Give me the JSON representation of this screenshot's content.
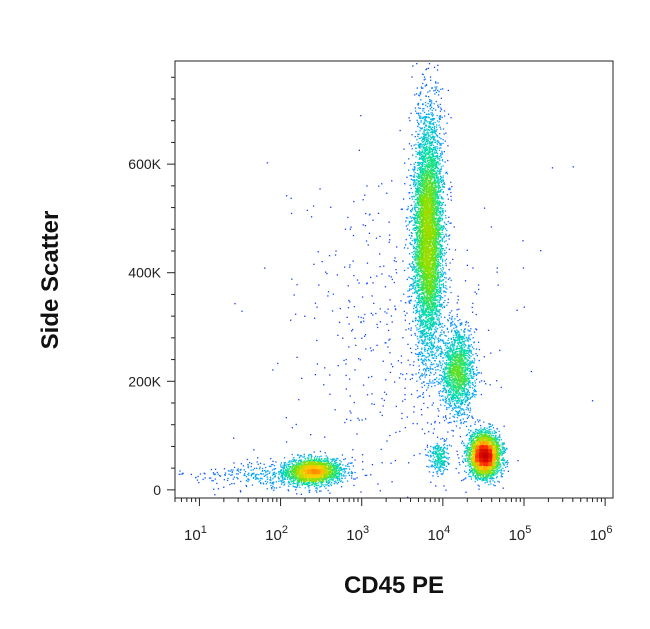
{
  "chart_data": {
    "type": "scatter",
    "subtype": "flow-cytometry-density-dot-plot",
    "xlabel": "CD45 PE",
    "ylabel": "Side Scatter",
    "x_scale": "log",
    "xlim": [
      5,
      1250000
    ],
    "ylim": [
      -15000,
      790000
    ],
    "x_ticks": [
      {
        "value": 10,
        "base": "10",
        "exp": "1"
      },
      {
        "value": 100,
        "base": "10",
        "exp": "2"
      },
      {
        "value": 1000,
        "base": "10",
        "exp": "3"
      },
      {
        "value": 10000,
        "base": "10",
        "exp": "4"
      },
      {
        "value": 100000,
        "base": "10",
        "exp": "5"
      },
      {
        "value": 1000000,
        "base": "10",
        "exp": "6"
      }
    ],
    "y_ticks": [
      {
        "value": 0,
        "label": "0"
      },
      {
        "value": 200000,
        "label": "200K"
      },
      {
        "value": 400000,
        "label": "400K"
      },
      {
        "value": 600000,
        "label": "600K"
      }
    ],
    "color_scale": [
      "#1a1aff",
      "#00a8ff",
      "#00e0a0",
      "#7de000",
      "#ffd000",
      "#ff3000",
      "#c80000"
    ],
    "populations": [
      {
        "center_x": 250,
        "center_y": 35000,
        "spread_log_x": 0.18,
        "spread_y": 12000,
        "count": 2000
      },
      {
        "center_x": 80,
        "center_y": 28000,
        "spread_log_x": 0.45,
        "spread_y": 12000,
        "count": 350
      },
      {
        "center_x": 6500,
        "center_y": 470000,
        "spread_log_x": 0.09,
        "spread_y": 110000,
        "count": 5800
      },
      {
        "center_x": 15000,
        "center_y": 220000,
        "spread_log_x": 0.1,
        "spread_y": 40000,
        "count": 1600
      },
      {
        "center_x": 32000,
        "center_y": 65000,
        "spread_log_x": 0.1,
        "spread_y": 20000,
        "count": 3200
      },
      {
        "center_x": 9000,
        "center_y": 60000,
        "spread_log_x": 0.06,
        "spread_y": 15000,
        "count": 250
      },
      {
        "center_x": 3000,
        "center_y": 300000,
        "spread_log_x": 0.7,
        "spread_y": 160000,
        "count": 500
      }
    ]
  }
}
